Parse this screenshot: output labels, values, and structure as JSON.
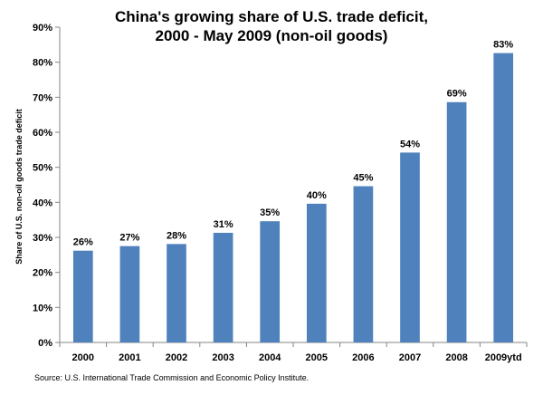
{
  "chart_data": {
    "type": "bar",
    "title_line1": "China's  growing share of U.S. trade deficit,",
    "title_line2": "2000 - May 2009 (non-oil goods)",
    "xlabel": "",
    "ylabel": "Share of U.S. non-oil goods trade deficit",
    "ylim": [
      0,
      90
    ],
    "yticks": [
      "0%",
      "10%",
      "20%",
      "30%",
      "40%",
      "50%",
      "60%",
      "70%",
      "80%",
      "90%"
    ],
    "categories": [
      "2000",
      "2001",
      "2002",
      "2003",
      "2004",
      "2005",
      "2006",
      "2007",
      "2008",
      "2009ytd"
    ],
    "values": [
      26.2,
      27.5,
      28.1,
      31.3,
      34.6,
      39.6,
      44.6,
      54.2,
      68.6,
      82.6
    ],
    "data_labels": [
      "26%",
      "27%",
      "28%",
      "31%",
      "35%",
      "40%",
      "45%",
      "54%",
      "69%",
      "83%"
    ],
    "bar_color": "#4f81bd",
    "grid": false,
    "legend": "none"
  },
  "source": "Source:  U.S. International Trade Commission and Economic Policy Institute."
}
